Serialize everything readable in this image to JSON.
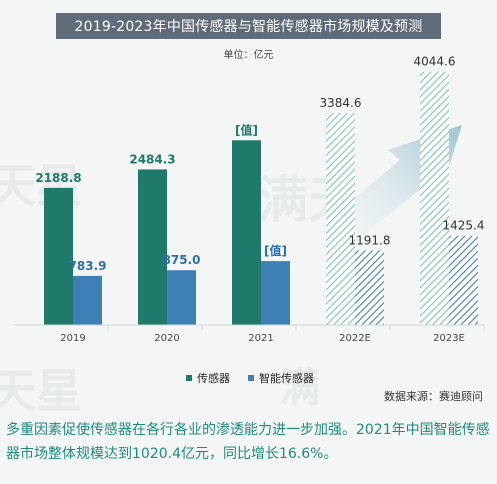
{
  "chart_data": {
    "type": "bar",
    "title": "2019-2023年中国传感器与智能传感器市场规模及预测",
    "unit": "单位：亿元",
    "categories": [
      "2019",
      "2020",
      "2021",
      "2022E",
      "2023E"
    ],
    "series": [
      {
        "name": "传感器",
        "color": "#1f7a6b",
        "values": [
          2188.8,
          2484.3,
          2950,
          3384.6,
          4044.6
        ],
        "labels": [
          "2188.8",
          "2484.3",
          "[值]",
          "3384.6",
          "4044.6"
        ]
      },
      {
        "name": "智能传感器",
        "color": "#3e7fb5",
        "values": [
          783.9,
          875.0,
          1020.4,
          1191.8,
          1425.4
        ],
        "labels": [
          "783.9",
          "875.0",
          "[值]",
          "1191.8",
          "1425.4"
        ]
      }
    ],
    "forecast_from_index": 3,
    "ylim": [
      0,
      4200
    ],
    "legend_position": "bottom"
  },
  "source": "数据来源：赛迪顾问",
  "caption": "多重因素促使传感器在各行各业的渗透能力进一步加强。2021年中国智能传感器市场整体规模达到1020.4亿元，同比增长16.6%。",
  "watermark": "满天星"
}
